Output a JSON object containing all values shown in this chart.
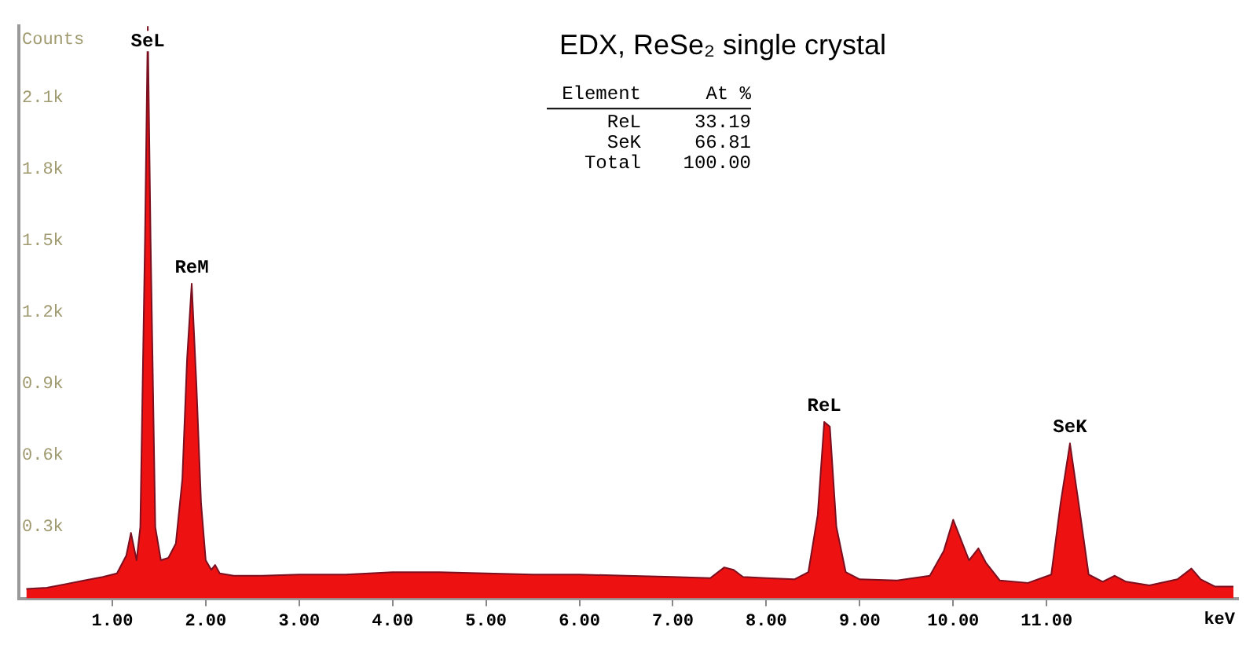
{
  "chart_data": {
    "type": "area",
    "title": "EDX, ReSe₂ single crystal",
    "xlabel": "keV",
    "ylabel": "Counts",
    "x": [
      0.08,
      0.3,
      0.5,
      0.7,
      0.9,
      1.05,
      1.15,
      1.2,
      1.26,
      1.3,
      1.35,
      1.38,
      1.41,
      1.46,
      1.52,
      1.6,
      1.68,
      1.75,
      1.8,
      1.85,
      1.9,
      1.95,
      2.0,
      2.06,
      2.1,
      2.15,
      2.3,
      2.6,
      3.0,
      3.5,
      4.0,
      4.5,
      5.0,
      5.5,
      6.0,
      6.5,
      7.0,
      7.4,
      7.55,
      7.65,
      7.75,
      8.0,
      8.3,
      8.45,
      8.55,
      8.62,
      8.68,
      8.75,
      8.85,
      9.0,
      9.4,
      9.75,
      9.9,
      10.0,
      10.1,
      10.17,
      10.27,
      10.35,
      10.5,
      10.8,
      11.05,
      11.15,
      11.25,
      11.35,
      11.45,
      11.6,
      11.73,
      11.85,
      12.1,
      12.4,
      12.55,
      12.65,
      12.8,
      13.0
    ],
    "series": [
      {
        "color": "#ee1111",
        "values": [
          40,
          45,
          60,
          75,
          90,
          105,
          180,
          275,
          160,
          300,
          1500,
          2400,
          1500,
          300,
          160,
          170,
          230,
          500,
          1000,
          1320,
          900,
          400,
          160,
          120,
          140,
          105,
          95,
          95,
          100,
          100,
          110,
          110,
          105,
          100,
          100,
          95,
          90,
          85,
          130,
          120,
          90,
          85,
          80,
          110,
          350,
          740,
          720,
          300,
          110,
          80,
          75,
          95,
          200,
          330,
          230,
          160,
          210,
          150,
          75,
          65,
          100,
          400,
          650,
          380,
          100,
          70,
          95,
          70,
          55,
          80,
          125,
          80,
          50,
          50
        ]
      }
    ],
    "xlim": [
      0,
      13.05
    ],
    "xticks": [
      {
        "value": 1,
        "label": "1.00"
      },
      {
        "value": 2,
        "label": "2.00"
      },
      {
        "value": 3,
        "label": "3.00"
      },
      {
        "value": 4,
        "label": "4.00"
      },
      {
        "value": 5,
        "label": "5.00"
      },
      {
        "value": 6,
        "label": "6.00"
      },
      {
        "value": 7,
        "label": "7.00"
      },
      {
        "value": 8,
        "label": "8.00"
      },
      {
        "value": 9,
        "label": "9.00"
      },
      {
        "value": 10,
        "label": "10.00"
      },
      {
        "value": 11,
        "label": "11.00"
      }
    ],
    "ylim": [
      0,
      2400
    ],
    "yticks": [
      {
        "value": 300,
        "label": "0.3k"
      },
      {
        "value": 600,
        "label": "0.6k"
      },
      {
        "value": 900,
        "label": "0.9k"
      },
      {
        "value": 1200,
        "label": "1.2k"
      },
      {
        "value": 1500,
        "label": "1.5k"
      },
      {
        "value": 1800,
        "label": "1.8k"
      },
      {
        "value": 2100,
        "label": "2.1k"
      }
    ],
    "grid": false,
    "legend": false,
    "annotations": [
      {
        "text": "SeL",
        "x": 1.38,
        "y": 2400
      },
      {
        "text": "ReM",
        "x": 1.85,
        "y": 1320
      },
      {
        "text": "ReL",
        "x": 8.62,
        "y": 740
      },
      {
        "text": "SeK",
        "x": 11.25,
        "y": 650
      },
      "Element",
      "At %",
      "ReL",
      "33.19",
      "SeK",
      "66.81",
      "Total",
      "100.00"
    ]
  }
}
